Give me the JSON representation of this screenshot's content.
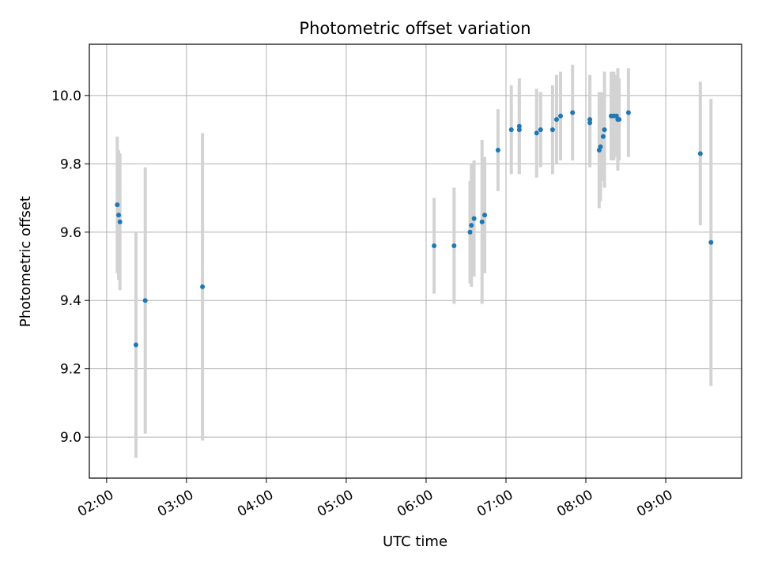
{
  "chart_data": {
    "type": "scatter",
    "title": "Photometric offset variation",
    "xlabel": "UTC time",
    "ylabel": "Photometric offset",
    "x_tick_labels": [
      "02:00",
      "03:00",
      "04:00",
      "05:00",
      "06:00",
      "07:00",
      "08:00",
      "09:00"
    ],
    "y_tick_labels": [
      "9.0",
      "9.2",
      "9.4",
      "9.6",
      "9.8",
      "10.0"
    ],
    "xlim": [
      "01:47",
      "09:57"
    ],
    "ylim": [
      8.88,
      10.15
    ],
    "grid": true,
    "colors": {
      "points": "#1f77b4",
      "error_bars": "#d3d3d3",
      "grid": "#b0b0b0"
    },
    "points": [
      {
        "x": "02:08",
        "y": 9.68,
        "err": 0.2
      },
      {
        "x": "02:09",
        "y": 9.65,
        "err": 0.19
      },
      {
        "x": "02:10",
        "y": 9.63,
        "err": 0.2
      },
      {
        "x": "02:22",
        "y": 9.27,
        "err": 0.33
      },
      {
        "x": "02:29",
        "y": 9.4,
        "err": 0.39
      },
      {
        "x": "03:12",
        "y": 9.44,
        "err": 0.45
      },
      {
        "x": "06:06",
        "y": 9.56,
        "err": 0.14
      },
      {
        "x": "06:21",
        "y": 9.56,
        "err": 0.17
      },
      {
        "x": "06:33",
        "y": 9.6,
        "err": 0.15
      },
      {
        "x": "06:34",
        "y": 9.62,
        "err": 0.18
      },
      {
        "x": "06:36",
        "y": 9.64,
        "err": 0.17
      },
      {
        "x": "06:42",
        "y": 9.63,
        "err": 0.24
      },
      {
        "x": "06:44",
        "y": 9.65,
        "err": 0.17
      },
      {
        "x": "06:54",
        "y": 9.84,
        "err": 0.12
      },
      {
        "x": "07:04",
        "y": 9.9,
        "err": 0.13
      },
      {
        "x": "07:10",
        "y": 9.91,
        "err": 0.14
      },
      {
        "x": "07:10",
        "y": 9.9,
        "err": 0.13
      },
      {
        "x": "07:23",
        "y": 9.89,
        "err": 0.13
      },
      {
        "x": "07:26",
        "y": 9.9,
        "err": 0.11
      },
      {
        "x": "07:35",
        "y": 9.9,
        "err": 0.13
      },
      {
        "x": "07:38",
        "y": 9.93,
        "err": 0.13
      },
      {
        "x": "07:41",
        "y": 9.94,
        "err": 0.13
      },
      {
        "x": "07:50",
        "y": 9.95,
        "err": 0.14
      },
      {
        "x": "08:03",
        "y": 9.92,
        "err": 0.13
      },
      {
        "x": "08:03",
        "y": 9.93,
        "err": 0.13
      },
      {
        "x": "08:10",
        "y": 9.84,
        "err": 0.17
      },
      {
        "x": "08:11",
        "y": 9.85,
        "err": 0.16
      },
      {
        "x": "08:13",
        "y": 9.88,
        "err": 0.13
      },
      {
        "x": "08:14",
        "y": 9.9,
        "err": 0.17
      },
      {
        "x": "08:19",
        "y": 9.94,
        "err": 0.13
      },
      {
        "x": "08:21",
        "y": 9.94,
        "err": 0.13
      },
      {
        "x": "08:23",
        "y": 9.94,
        "err": 0.12
      },
      {
        "x": "08:24",
        "y": 9.93,
        "err": 0.15
      },
      {
        "x": "08:25",
        "y": 9.93,
        "err": 0.12
      },
      {
        "x": "08:32",
        "y": 9.95,
        "err": 0.13
      },
      {
        "x": "09:26",
        "y": 9.83,
        "err": 0.21
      },
      {
        "x": "09:34",
        "y": 9.57,
        "err": 0.42
      }
    ]
  }
}
